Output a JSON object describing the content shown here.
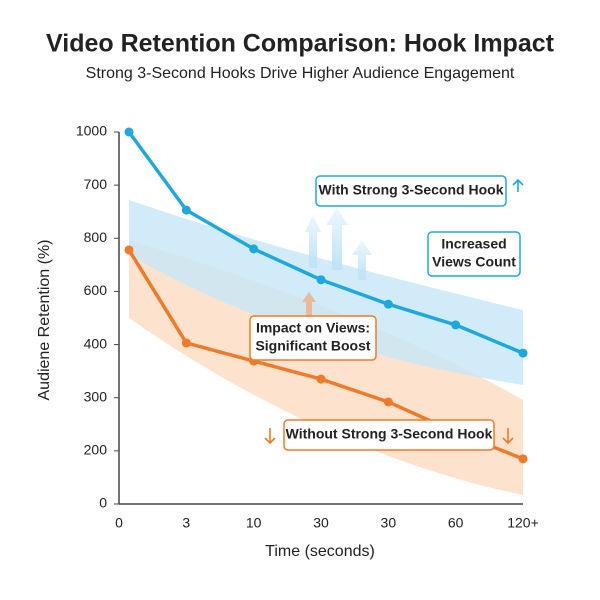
{
  "chart_data": {
    "type": "line",
    "title": "Video Retention Comparison: Hook Impact",
    "subtitle": "Strong 3-Second Hooks Drive Higher Audience Engagement",
    "x_label": "Time (seconds)",
    "y_label": "Audiene Retention (%)",
    "categories": [
      "0",
      "3",
      "10",
      "30",
      "30",
      "60",
      "120+"
    ],
    "ylim": [
      0,
      7
    ],
    "yticks": [
      {
        "value": 0,
        "label": "0"
      },
      {
        "value": 1,
        "label": "200"
      },
      {
        "value": 2,
        "label": "300"
      },
      {
        "value": 3,
        "label": "400"
      },
      {
        "value": 4,
        "label": "600"
      },
      {
        "value": 5,
        "label": "800"
      },
      {
        "value": 6,
        "label": "700"
      },
      {
        "value": 7,
        "label": "1000"
      }
    ],
    "series": [
      {
        "name": "With Strong 3-Second Hook",
        "color": "#1ea8e0",
        "values": [
          7.0,
          5.53,
          4.8,
          4.22,
          3.76,
          3.37,
          2.84
        ]
      },
      {
        "name": "Without Strong 3-Second Hook",
        "color": "#f07a2a",
        "values": [
          4.78,
          3.03,
          2.69,
          2.35,
          1.92,
          1.35,
          0.85
        ]
      }
    ],
    "annotations": [
      {
        "lines": [
          "Increased",
          "Views Count"
        ]
      },
      {
        "lines": [
          "Impact on Views:",
          "Significant Boost"
        ]
      }
    ]
  }
}
